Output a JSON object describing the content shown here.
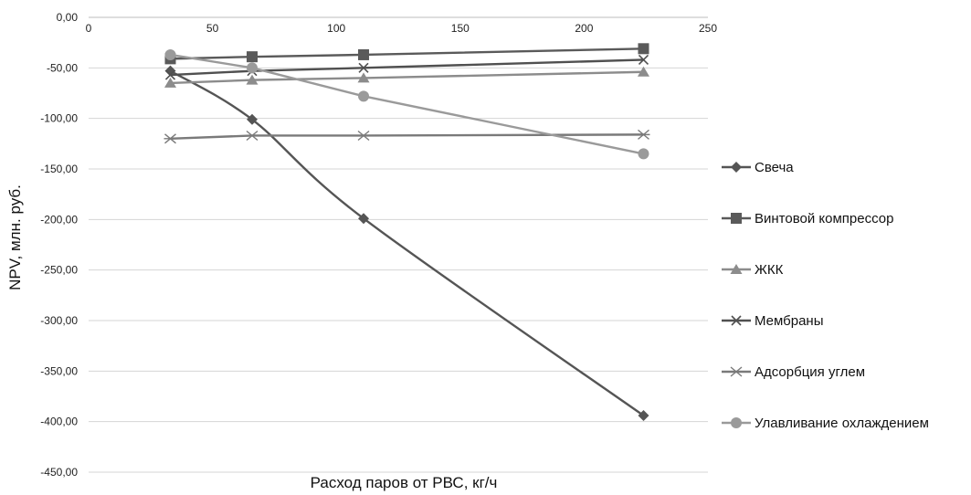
{
  "chart_data": {
    "type": "line",
    "xlabel": "Расход паров от РВС, кг/ч",
    "ylabel": "NPV, млн. руб.",
    "xlim": [
      0,
      250
    ],
    "ylim": [
      -450,
      0
    ],
    "x_ticks": [
      0,
      50,
      100,
      150,
      200,
      250
    ],
    "y_ticks": [
      0,
      -50,
      -100,
      -150,
      -200,
      -250,
      -300,
      -350,
      -400,
      -450
    ],
    "y_tick_labels": [
      "0,00",
      "-50,00",
      "-100,00",
      "-150,00",
      "-200,00",
      "-250,00",
      "-300,00",
      "-350,00",
      "-400,00",
      "-450,00"
    ],
    "grid": "horizontal",
    "legend_position": "right",
    "series": [
      {
        "name": "Свеча",
        "marker": "diamond",
        "color": "#555555",
        "smooth": true,
        "x": [
          33,
          66,
          111,
          224
        ],
        "y": [
          -53,
          -101,
          -199,
          -394
        ]
      },
      {
        "name": "Винтовой компрессор",
        "marker": "square",
        "color": "#5a5a5a",
        "smooth": false,
        "x": [
          33,
          66,
          111,
          224
        ],
        "y": [
          -41,
          -39,
          -37,
          -31
        ]
      },
      {
        "name": "ЖКК",
        "marker": "triangle",
        "color": "#8c8c8c",
        "smooth": false,
        "x": [
          33,
          66,
          111,
          224
        ],
        "y": [
          -65,
          -62,
          -60,
          -54
        ]
      },
      {
        "name": "Мембраны",
        "marker": "x",
        "color": "#505050",
        "smooth": false,
        "x": [
          33,
          66,
          111,
          224
        ],
        "y": [
          -57,
          -53,
          -50,
          -42
        ]
      },
      {
        "name": "Адсорбция углем",
        "marker": "star",
        "color": "#7a7a7a",
        "smooth": false,
        "x": [
          33,
          66,
          111,
          224
        ],
        "y": [
          -120,
          -117,
          -117,
          -116
        ]
      },
      {
        "name": "Улавливание охлаждением",
        "marker": "circle",
        "color": "#9a9a9a",
        "smooth": false,
        "x": [
          33,
          66,
          111,
          224
        ],
        "y": [
          -37,
          -50,
          -78,
          -135
        ]
      }
    ]
  }
}
